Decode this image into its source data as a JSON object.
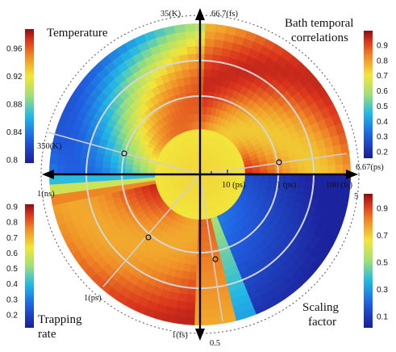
{
  "quadrants": {
    "top_left": {
      "title": "Temperature",
      "colorbar_ticks": [
        "0.96",
        "0.92",
        "0.88",
        "0.84",
        "0.8"
      ]
    },
    "top_right": {
      "title_line1": "Bath temporal",
      "title_line2": "correlations",
      "colorbar_ticks": [
        "0.9",
        "0.8",
        "0.7",
        "0.6",
        "0.5",
        "0.4",
        "0.3",
        "0.2"
      ]
    },
    "bottom_left": {
      "title_line1": "Trapping",
      "title_line2": "rate",
      "colorbar_ticks": [
        "0.9",
        "0.8",
        "0.7",
        "0.6",
        "0.5",
        "0.4",
        "0.3",
        "0.2"
      ]
    },
    "bottom_right": {
      "title_line1": "Scaling",
      "title_line2": "factor",
      "colorbar_ticks": [
        "0.9",
        "0.7",
        "0.5",
        "0.3",
        "0.1"
      ]
    }
  },
  "axis_labels": {
    "top_left": "35(K)",
    "top_right": "66.7(fs)",
    "left": "350(K)",
    "right": "6.67(ps)",
    "upper_left_radial": "1(ns)",
    "right_bottom": "5",
    "lower_left_radial": "1(ps)",
    "bottom_left": "1(fs)",
    "bottom": "0.5"
  },
  "inner_labels": {
    "a": "10 (ps)",
    "b": "1 (ps)",
    "c": "100 (fs)"
  },
  "colors": {
    "jet_low": "#1f1fa8",
    "jet_high": "#a50f15",
    "ring": "#c8c8c8",
    "axis": "#000000"
  }
}
